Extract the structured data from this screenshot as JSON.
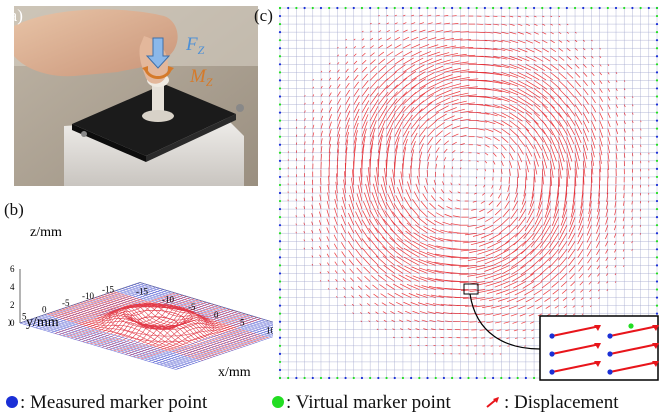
{
  "panels": {
    "a": {
      "label": "(a)",
      "force_label": "F",
      "force_sub": "Z",
      "moment_label": "M",
      "moment_sub": "Z"
    },
    "b": {
      "label": "(b)",
      "zlabel": "z/mm",
      "ylabel": "y/mm",
      "xlabel": "x/mm",
      "z_ticks": [
        "6",
        "4",
        "2",
        "0"
      ],
      "y_ticks": [
        "10",
        "5",
        "0",
        "-5",
        "-10",
        "-15"
      ],
      "x_ticks": [
        "-15",
        "-10",
        "-5",
        "0",
        "5",
        "10"
      ]
    },
    "c": {
      "label": "(c)"
    }
  },
  "colors": {
    "measured": "#1a2fd6",
    "virtual": "#22dd22",
    "displacement": "#e8151b",
    "mesh_blue": "#6a72d8",
    "mesh_red": "#e23a48"
  },
  "legend": {
    "measured": ": Measured marker point",
    "virtual": ": Virtual marker point",
    "displacement": ": Displacement"
  }
}
